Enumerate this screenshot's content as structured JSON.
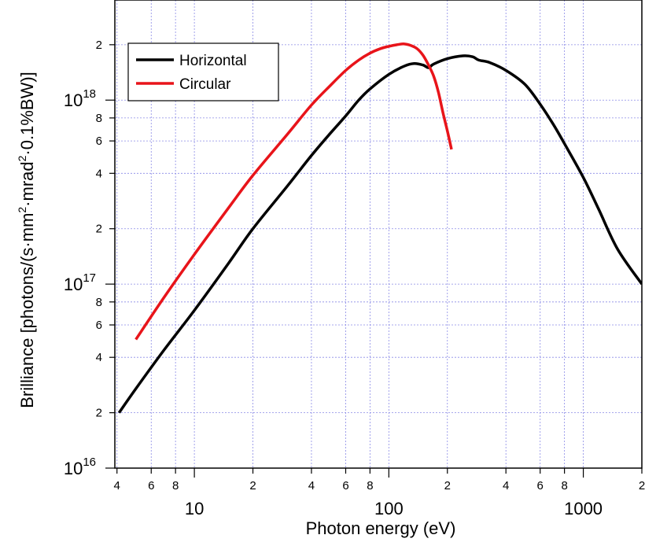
{
  "chart_data": {
    "type": "line",
    "xlabel": "Photon energy (eV)",
    "ylabel_parts": [
      "Brilliance [photons/(s·mm",
      "2",
      "·mrad",
      "2",
      "·0.1%BW)]"
    ],
    "x_scale": "log",
    "y_scale": "log",
    "xlim": [
      3.9,
      2000
    ],
    "ylim": [
      1e+16,
      3.5e+18
    ],
    "grid": true,
    "legend_position": "top-left",
    "x_major_ticks": [
      {
        "value": 10,
        "label": "10"
      },
      {
        "value": 100,
        "label": "100"
      },
      {
        "value": 1000,
        "label": "1000"
      }
    ],
    "x_minor_ticks": [
      {
        "value": 4,
        "label": "4"
      },
      {
        "value": 6,
        "label": "6"
      },
      {
        "value": 8,
        "label": "8"
      },
      {
        "value": 20,
        "label": "2"
      },
      {
        "value": 40,
        "label": "4"
      },
      {
        "value": 60,
        "label": "6"
      },
      {
        "value": 80,
        "label": "8"
      },
      {
        "value": 200,
        "label": "2"
      },
      {
        "value": 400,
        "label": "4"
      },
      {
        "value": 600,
        "label": "6"
      },
      {
        "value": 800,
        "label": "8"
      },
      {
        "value": 2000,
        "label": "2"
      }
    ],
    "y_major_ticks": [
      {
        "value": 1e+16,
        "base": "10",
        "exp": "16"
      },
      {
        "value": 1e+17,
        "base": "10",
        "exp": "17"
      },
      {
        "value": 1e+18,
        "base": "10",
        "exp": "18"
      }
    ],
    "y_minor_ticks": [
      {
        "value": 2e+16,
        "label": "2"
      },
      {
        "value": 4e+16,
        "label": "4"
      },
      {
        "value": 6e+16,
        "label": "6"
      },
      {
        "value": 8e+16,
        "label": "8"
      },
      {
        "value": 2e+17,
        "label": "2"
      },
      {
        "value": 4e+17,
        "label": "4"
      },
      {
        "value": 6e+17,
        "label": "6"
      },
      {
        "value": 8e+17,
        "label": "8"
      },
      {
        "value": 2e+18,
        "label": "2"
      }
    ],
    "series": [
      {
        "name": "Horizontal",
        "color": "#000000",
        "points": [
          [
            4.1,
            2e+16
          ],
          [
            5,
            2.7e+16
          ],
          [
            7,
            4.4e+16
          ],
          [
            10,
            7.2e+16
          ],
          [
            15,
            1.3e+17
          ],
          [
            20,
            2e+17
          ],
          [
            30,
            3.4e+17
          ],
          [
            40,
            5e+17
          ],
          [
            50,
            6.6e+17
          ],
          [
            60,
            8.2e+17
          ],
          [
            70,
            1e+18
          ],
          [
            80,
            1.15e+18
          ],
          [
            100,
            1.38e+18
          ],
          [
            120,
            1.53e+18
          ],
          [
            135,
            1.58e+18
          ],
          [
            150,
            1.55e+18
          ],
          [
            160,
            1.5e+18
          ],
          [
            170,
            1.57e+18
          ],
          [
            200,
            1.68e+18
          ],
          [
            240,
            1.74e+18
          ],
          [
            270,
            1.72e+18
          ],
          [
            290,
            1.65e+18
          ],
          [
            330,
            1.6e+18
          ],
          [
            400,
            1.45e+18
          ],
          [
            500,
            1.22e+18
          ],
          [
            600,
            9.5e+17
          ],
          [
            700,
            7.4e+17
          ],
          [
            800,
            5.8e+17
          ],
          [
            1000,
            3.8e+17
          ],
          [
            1200,
            2.55e+17
          ],
          [
            1500,
            1.55e+17
          ],
          [
            2000,
            1e+17
          ]
        ]
      },
      {
        "name": "Circular",
        "color": "#e8141a",
        "points": [
          [
            5,
            5e+16
          ],
          [
            7,
            8.5e+16
          ],
          [
            10,
            1.45e+17
          ],
          [
            15,
            2.6e+17
          ],
          [
            20,
            3.9e+17
          ],
          [
            30,
            6.5e+17
          ],
          [
            40,
            9.4e+17
          ],
          [
            50,
            1.2e+18
          ],
          [
            60,
            1.45e+18
          ],
          [
            70,
            1.65e+18
          ],
          [
            80,
            1.8e+18
          ],
          [
            90,
            1.9e+18
          ],
          [
            100,
            1.96e+18
          ],
          [
            110,
            2e+18
          ],
          [
            120,
            2.02e+18
          ],
          [
            130,
            1.98e+18
          ],
          [
            140,
            1.9e+18
          ],
          [
            150,
            1.75e+18
          ],
          [
            160,
            1.55e+18
          ],
          [
            170,
            1.35e+18
          ],
          [
            180,
            1.1e+18
          ],
          [
            190,
            8.5e+17
          ],
          [
            200,
            6.8e+17
          ],
          [
            210,
            5.4e+17
          ]
        ]
      }
    ]
  }
}
